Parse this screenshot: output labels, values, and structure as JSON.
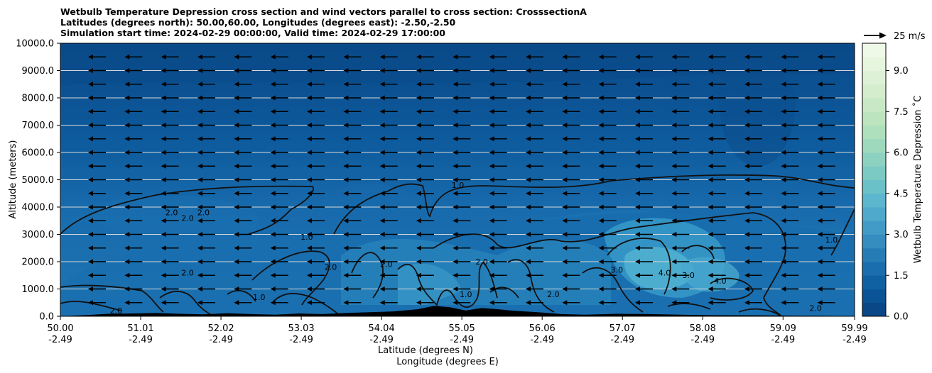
{
  "title_lines": [
    "Wetbulb Temperature Depression cross section and wind vectors parallel to cross section: CrosssectionA",
    "Latitudes (degrees north): 50.00,60.00, Longitudes (degrees east): -2.50,-2.50",
    "Simulation start time: 2024-02-29 00:00:00, Valid time: 2024-02-29 17:00:00"
  ],
  "chart_data": {
    "type": "heatmap",
    "subtype": "filled-contour cross section with wind vectors",
    "ylabel": "Altitude (meters)",
    "xlabel_line1": "Latitude (degrees N)",
    "xlabel_line2": "Longitude (degrees E)",
    "ylim": [
      0,
      10000
    ],
    "y_ticks": [
      "0.0",
      "1000.0",
      "2000.0",
      "3000.0",
      "4000.0",
      "5000.0",
      "6000.0",
      "7000.0",
      "8000.0",
      "9000.0",
      "10000.0"
    ],
    "y_tick_values": [
      0,
      1000,
      2000,
      3000,
      4000,
      5000,
      6000,
      7000,
      8000,
      9000,
      10000
    ],
    "x_ticks": [
      {
        "lat": "50.00",
        "lon": "-2.49"
      },
      {
        "lat": "51.01",
        "lon": "-2.49"
      },
      {
        "lat": "52.02",
        "lon": "-2.49"
      },
      {
        "lat": "53.03",
        "lon": "-2.49"
      },
      {
        "lat": "54.04",
        "lon": "-2.49"
      },
      {
        "lat": "55.05",
        "lon": "-2.49"
      },
      {
        "lat": "56.06",
        "lon": "-2.49"
      },
      {
        "lat": "57.07",
        "lon": "-2.49"
      },
      {
        "lat": "58.08",
        "lon": "-2.49"
      },
      {
        "lat": "59.09",
        "lon": "-2.49"
      },
      {
        "lat": "59.99",
        "lon": "-2.49"
      }
    ],
    "horizontal_grid": true,
    "colorbar": {
      "label": "Wetbulb Temperature Depression ˚C",
      "range": [
        0,
        10
      ],
      "ticks": [
        "0.0",
        "1.5",
        "3.0",
        "4.5",
        "6.0",
        "7.5",
        "9.0"
      ],
      "tick_values": [
        0,
        1.5,
        3,
        4.5,
        6,
        7.5,
        9
      ],
      "levels": 20
    },
    "contour_levels": [
      1.0,
      2.0,
      3.0,
      4.0
    ],
    "contour_labels": [
      {
        "text": "1.0",
        "lat": 55.0,
        "alt": 4700
      },
      {
        "text": "1.0",
        "lat": 53.1,
        "alt": 2800
      },
      {
        "text": "2.0",
        "lat": 51.4,
        "alt": 3700
      },
      {
        "text": "2.0",
        "lat": 51.6,
        "alt": 3500
      },
      {
        "text": "2.0",
        "lat": 51.8,
        "alt": 3700
      },
      {
        "text": "2.0",
        "lat": 51.6,
        "alt": 1500
      },
      {
        "text": "2.0",
        "lat": 53.4,
        "alt": 1700
      },
      {
        "text": "2.0",
        "lat": 54.1,
        "alt": 1800
      },
      {
        "text": "2.0",
        "lat": 55.3,
        "alt": 1900
      },
      {
        "text": "3.0",
        "lat": 57.0,
        "alt": 1600
      },
      {
        "text": "3.0",
        "lat": 57.9,
        "alt": 1400
      },
      {
        "text": "4.0",
        "lat": 57.6,
        "alt": 1500
      },
      {
        "text": "4.0",
        "lat": 58.3,
        "alt": 1200
      },
      {
        "text": "1.0",
        "lat": 59.7,
        "alt": 2700
      },
      {
        "text": "1.0",
        "lat": 55.1,
        "alt": 700
      },
      {
        "text": "1.0",
        "lat": 52.5,
        "alt": 600
      },
      {
        "text": "2.0",
        "lat": 56.2,
        "alt": 700
      },
      {
        "text": "2.0",
        "lat": 59.5,
        "alt": 200
      },
      {
        "text": "2.0",
        "lat": 50.7,
        "alt": 100
      }
    ],
    "wind_reference": {
      "label": "25 m/s",
      "speed": 25
    },
    "wind_direction": "westward (leftward), roughly uniform",
    "terrain_color": "#000000"
  },
  "colors": {
    "contour_line": "#111111",
    "grid_line": "#d9d9d9",
    "arrow": "#000000"
  }
}
